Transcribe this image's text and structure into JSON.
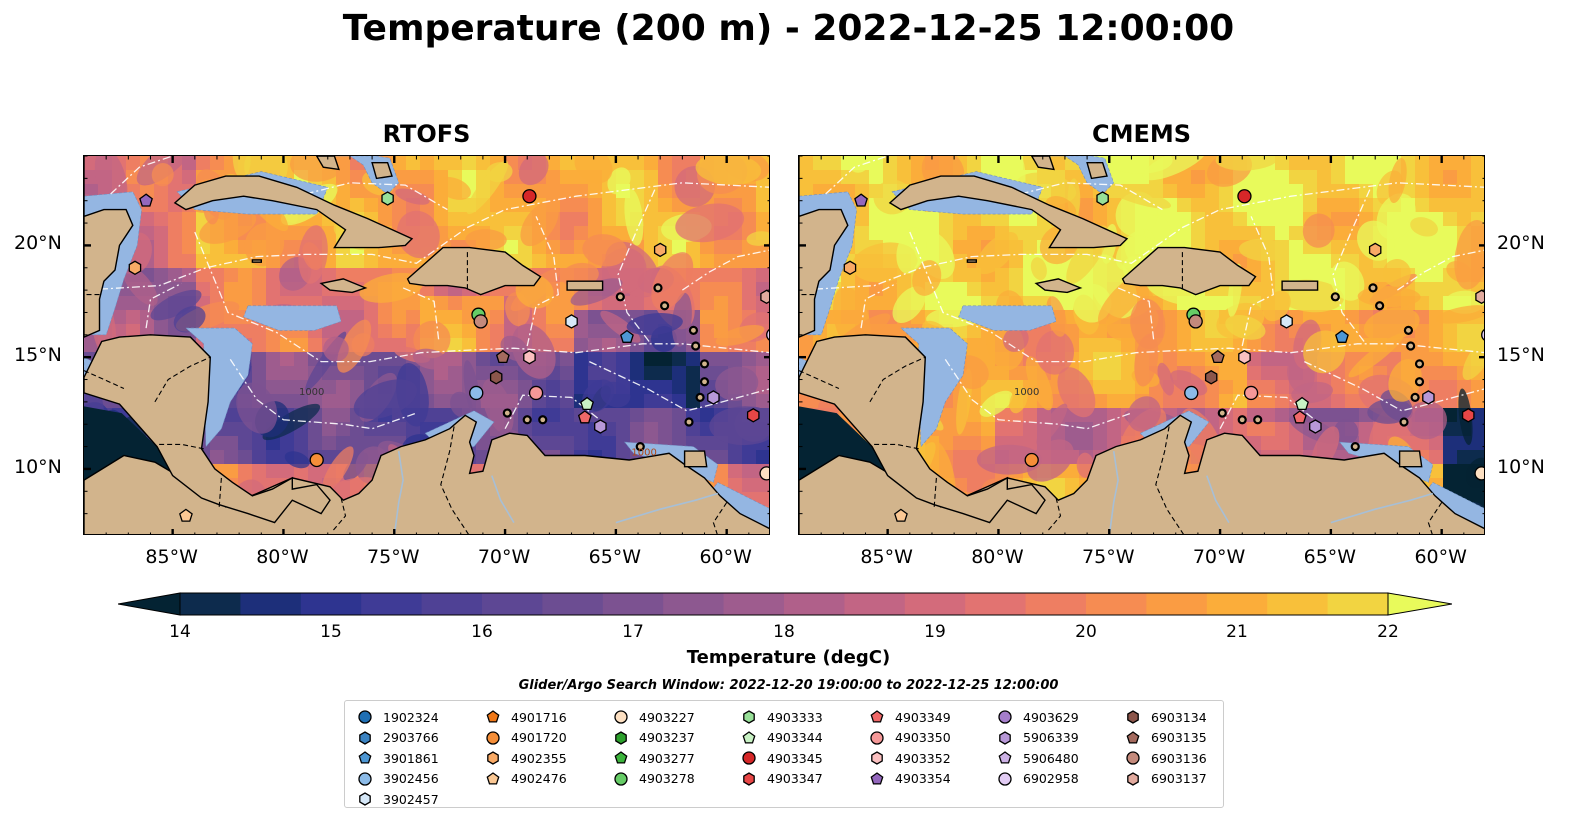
{
  "title": "Temperature (200 m) - 2022-12-25 12:00:00",
  "panels": [
    {
      "name": "RTOFS",
      "variant": "rtofs"
    },
    {
      "name": "CMEMS",
      "variant": "cmems"
    }
  ],
  "axes": {
    "lon_range": [
      -89,
      -58
    ],
    "lat_range": [
      7,
      24
    ],
    "lon_ticks": [
      "85°W",
      "80°W",
      "75°W",
      "70°W",
      "65°W",
      "60°W"
    ],
    "lon_values": [
      -85,
      -80,
      -75,
      -70,
      -65,
      -60
    ],
    "lat_ticks": [
      "20°N",
      "15°N",
      "10°N"
    ],
    "lat_values": [
      20,
      15,
      10
    ]
  },
  "contour_labels": [
    "1000",
    "1000"
  ],
  "colorbar": {
    "label": "Temperature (degC)",
    "min": 14,
    "max": 22,
    "ticks": [
      "14",
      "15",
      "16",
      "17",
      "18",
      "19",
      "20",
      "21",
      "22"
    ],
    "tick_values": [
      14,
      15,
      16,
      17,
      18,
      19,
      20,
      21,
      22
    ],
    "extend": "both",
    "colormap": "thermal",
    "colors": [
      "#042333",
      "#0d2b4d",
      "#1d2f7a",
      "#2e3490",
      "#3f3b96",
      "#4f4195",
      "#5d4794",
      "#6c4d92",
      "#7c5291",
      "#8d5890",
      "#9e5c8e",
      "#b0608a",
      "#c26584",
      "#d36b7b",
      "#e27371",
      "#ee7e62",
      "#f68c52",
      "#fa9c43",
      "#fbad3a",
      "#f8c03a",
      "#f2d441",
      "#e8fa5b"
    ]
  },
  "colors": {
    "land": "#d2b48c",
    "shelf": "#94b6e2",
    "coast": "#000000",
    "eez": "#ffffff"
  },
  "legend": {
    "title": "Glider/Argo Search Window: 2022-12-20 19:00:00 to 2022-12-25 12:00:00",
    "columns": [
      [
        {
          "id": "1902324",
          "marker": "circle",
          "color": "#1f6fb4"
        },
        {
          "id": "2903766",
          "marker": "hexagon",
          "color": "#3b83c2"
        },
        {
          "id": "3901861",
          "marker": "pentagon",
          "color": "#4d97d4"
        },
        {
          "id": "3902456",
          "marker": "circle",
          "color": "#8cbbe8"
        },
        {
          "id": "3902457",
          "marker": "hexagon",
          "color": "#d6e8f8"
        }
      ],
      [
        {
          "id": "4901716",
          "marker": "pentagon",
          "color": "#f07818"
        },
        {
          "id": "4901720",
          "marker": "circle",
          "color": "#f58e38"
        },
        {
          "id": "4902355",
          "marker": "hexagon",
          "color": "#f9aa66"
        },
        {
          "id": "4902476",
          "marker": "pentagon",
          "color": "#fbc894"
        }
      ],
      [
        {
          "id": "4903227",
          "marker": "circle",
          "color": "#fde0c2"
        },
        {
          "id": "4903237",
          "marker": "hexagon",
          "color": "#2ca02c"
        },
        {
          "id": "4903277",
          "marker": "pentagon",
          "color": "#3cb43c"
        },
        {
          "id": "4903278",
          "marker": "circle",
          "color": "#66cc66"
        }
      ],
      [
        {
          "id": "4903333",
          "marker": "hexagon",
          "color": "#98e098"
        },
        {
          "id": "4903344",
          "marker": "pentagon",
          "color": "#c8f2c4"
        },
        {
          "id": "4903345",
          "marker": "circle",
          "color": "#d62728"
        },
        {
          "id": "4903347",
          "marker": "hexagon",
          "color": "#e84646"
        }
      ],
      [
        {
          "id": "4903349",
          "marker": "pentagon",
          "color": "#f06868"
        },
        {
          "id": "4903350",
          "marker": "circle",
          "color": "#f59898"
        },
        {
          "id": "4903352",
          "marker": "hexagon",
          "color": "#fbc0c0"
        },
        {
          "id": "4903354",
          "marker": "pentagon",
          "color": "#9467bd"
        }
      ],
      [
        {
          "id": "4903629",
          "marker": "circle",
          "color": "#a57ecb"
        },
        {
          "id": "5906339",
          "marker": "hexagon",
          "color": "#b898d8"
        },
        {
          "id": "5906480",
          "marker": "pentagon",
          "color": "#cdb2e6"
        },
        {
          "id": "6902958",
          "marker": "circle",
          "color": "#e2ccf4"
        }
      ],
      [
        {
          "id": "6903134",
          "marker": "hexagon",
          "color": "#8c564b"
        },
        {
          "id": "6903135",
          "marker": "pentagon",
          "color": "#a46a5e"
        },
        {
          "id": "6903136",
          "marker": "circle",
          "color": "#c48a7c"
        },
        {
          "id": "6903137",
          "marker": "hexagon",
          "color": "#e2aa9e"
        }
      ]
    ]
  },
  "floats": [
    {
      "id": "4903354",
      "lon": -86.2,
      "lat": 22.0
    },
    {
      "id": "4902355",
      "lon": -86.7,
      "lat": 19.0
    },
    {
      "id": "4903333",
      "lon": -75.3,
      "lat": 22.1
    },
    {
      "id": "4903345",
      "lon": -68.9,
      "lat": 22.2
    },
    {
      "id": "4902355",
      "lon": -63.0,
      "lat": 19.8
    },
    {
      "id": "6903137",
      "lon": -58.2,
      "lat": 17.7
    },
    {
      "id": "6902958",
      "lon": -57.9,
      "lat": 16.0
    },
    {
      "id": "4903278",
      "lon": -71.2,
      "lat": 16.9
    },
    {
      "id": "6903136",
      "lon": -71.1,
      "lat": 16.6
    },
    {
      "id": "3902457",
      "lon": -67.0,
      "lat": 16.6
    },
    {
      "id": "3901861",
      "lon": -64.5,
      "lat": 15.9
    },
    {
      "id": "6903135",
      "lon": -70.1,
      "lat": 15.0
    },
    {
      "id": "4903352",
      "lon": -68.9,
      "lat": 15.0
    },
    {
      "id": "6903134",
      "lon": -70.4,
      "lat": 14.1
    },
    {
      "id": "3902456",
      "lon": -71.3,
      "lat": 13.4
    },
    {
      "id": "4903350",
      "lon": -68.6,
      "lat": 13.4
    },
    {
      "id": "4903344",
      "lon": -66.3,
      "lat": 12.9
    },
    {
      "id": "4903349",
      "lon": -66.4,
      "lat": 12.3
    },
    {
      "id": "5906339",
      "lon": -65.7,
      "lat": 11.9
    },
    {
      "id": "4903347",
      "lon": -58.8,
      "lat": 12.4
    },
    {
      "id": "5906339",
      "lon": -60.6,
      "lat": 13.2
    },
    {
      "id": "4901720",
      "lon": -78.5,
      "lat": 10.4
    },
    {
      "id": "4902476",
      "lon": -84.4,
      "lat": 7.9
    },
    {
      "id": "4903227",
      "lon": -58.2,
      "lat": 9.8
    }
  ]
}
